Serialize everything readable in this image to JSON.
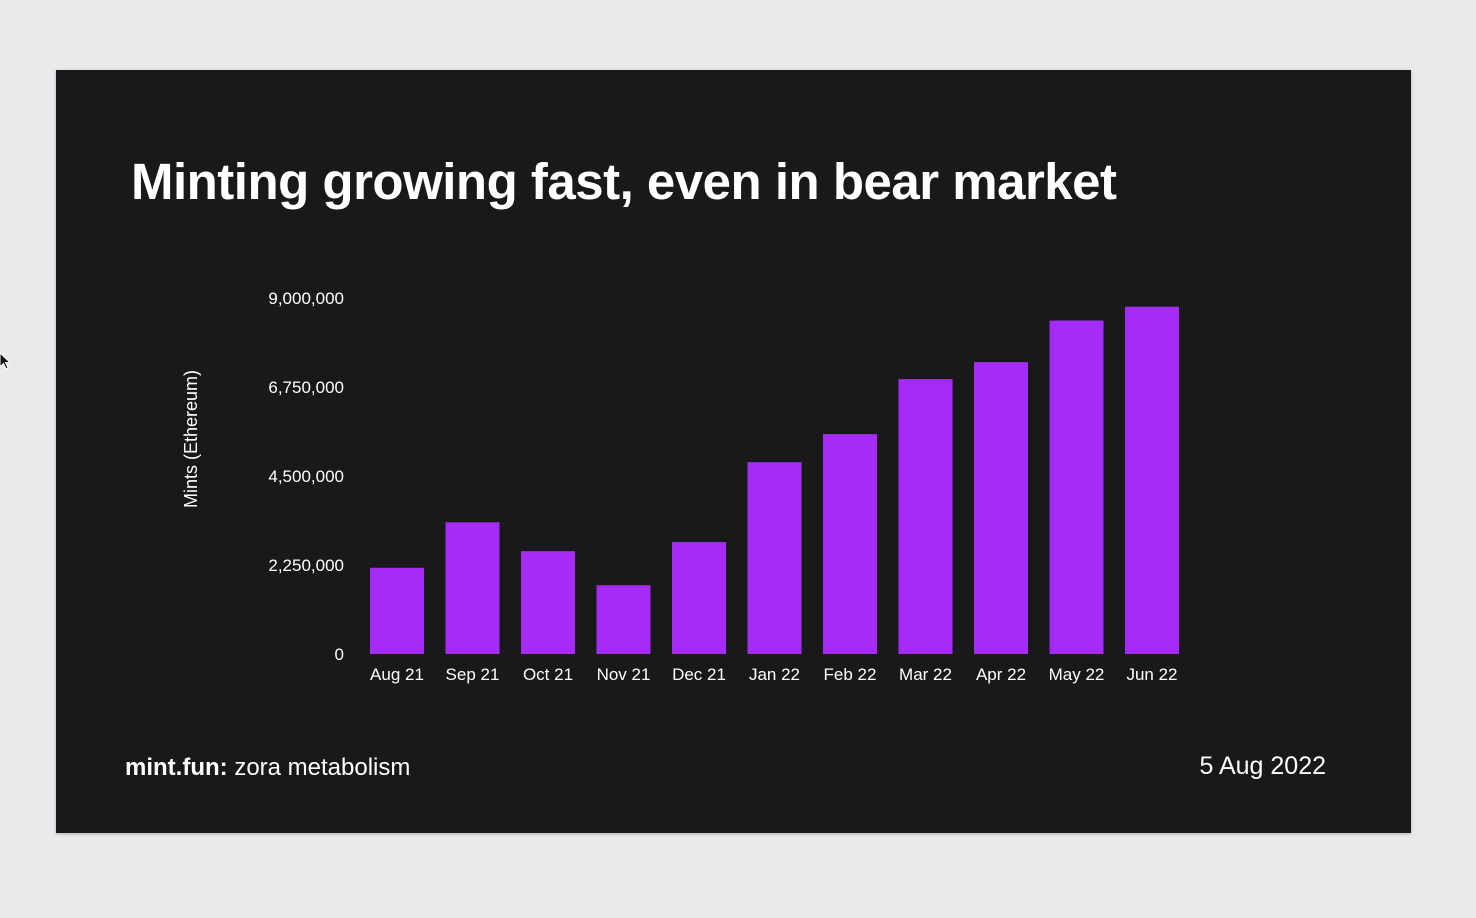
{
  "slide": {
    "title": "Minting growing fast, even in bear market",
    "footer_brand": "mint.fun:",
    "footer_text": "zora metabolism",
    "date": "5 Aug 2022"
  },
  "colors": {
    "page_background": "#ebe9ec",
    "slide_background": "#1a1919",
    "bar": "#a42cf6",
    "text": "#ffffff"
  },
  "chart_data": {
    "type": "bar",
    "categories": [
      "Aug 21",
      "Sep 21",
      "Oct 21",
      "Nov 21",
      "Dec 21",
      "Jan 22",
      "Feb 22",
      "Mar 22",
      "Apr 22",
      "May 22",
      "Jun 22"
    ],
    "values": [
      2180000,
      3330000,
      2600000,
      1740000,
      2830000,
      4850000,
      5560000,
      6950000,
      7380000,
      8430000,
      8780000
    ],
    "ylabel": "Mints (Ethereum)",
    "xlabel": "",
    "ylim": [
      0,
      9000000
    ],
    "yticks": [
      0,
      2250000,
      4500000,
      6750000,
      9000000
    ],
    "ytick_labels": [
      "0",
      "2,250,000",
      "4,500,000",
      "6,750,000",
      "9,000,000"
    ],
    "grid": false,
    "legend": "none"
  }
}
